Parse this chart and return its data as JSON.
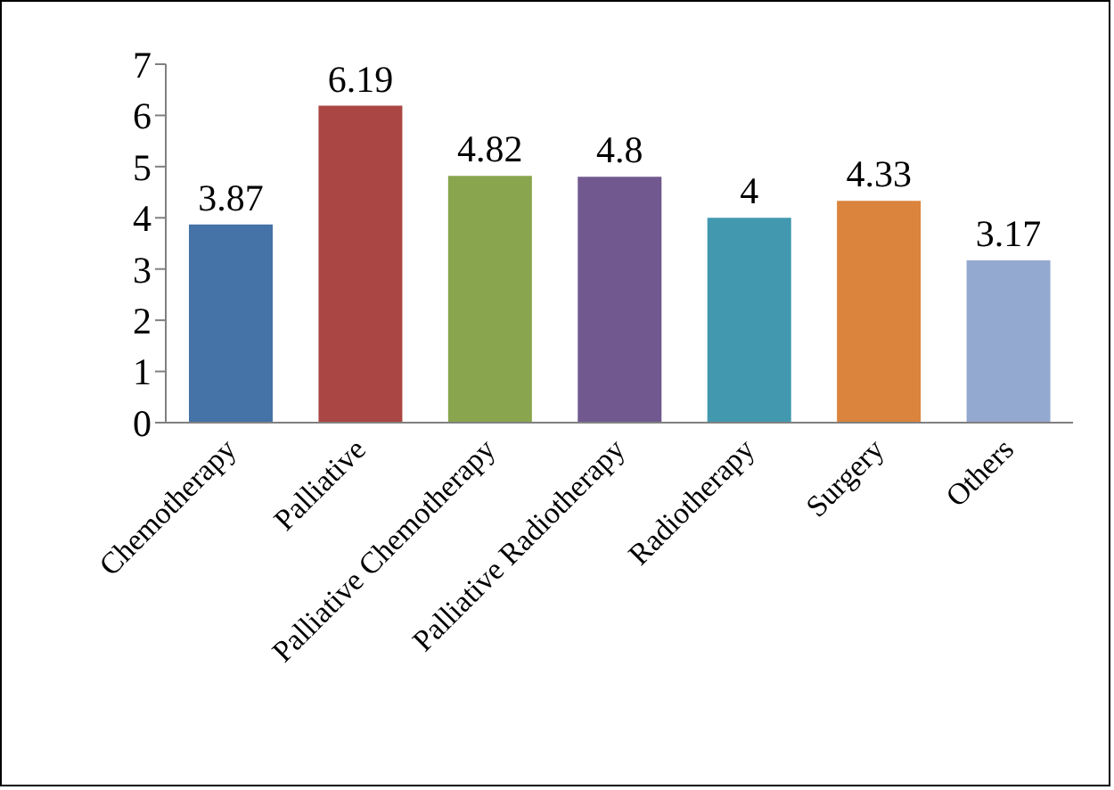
{
  "chart_data": {
    "type": "bar",
    "categories": [
      "Chemotherapy",
      "Palliative",
      "Palliative Chemotherapy",
      "Palliative Radiotherapy",
      "Radiotherapy",
      "Surgery",
      "Others"
    ],
    "values": [
      3.87,
      6.19,
      4.82,
      4.8,
      4,
      4.33,
      3.17
    ],
    "colors": [
      "#4572a7",
      "#aa4643",
      "#89a54e",
      "#71588f",
      "#4198af",
      "#db843d",
      "#93a9cf"
    ],
    "ylim": [
      0,
      7
    ],
    "yticks": [
      0,
      1,
      2,
      3,
      4,
      5,
      6,
      7
    ],
    "data_labels": true,
    "grid": false,
    "legend": false
  }
}
